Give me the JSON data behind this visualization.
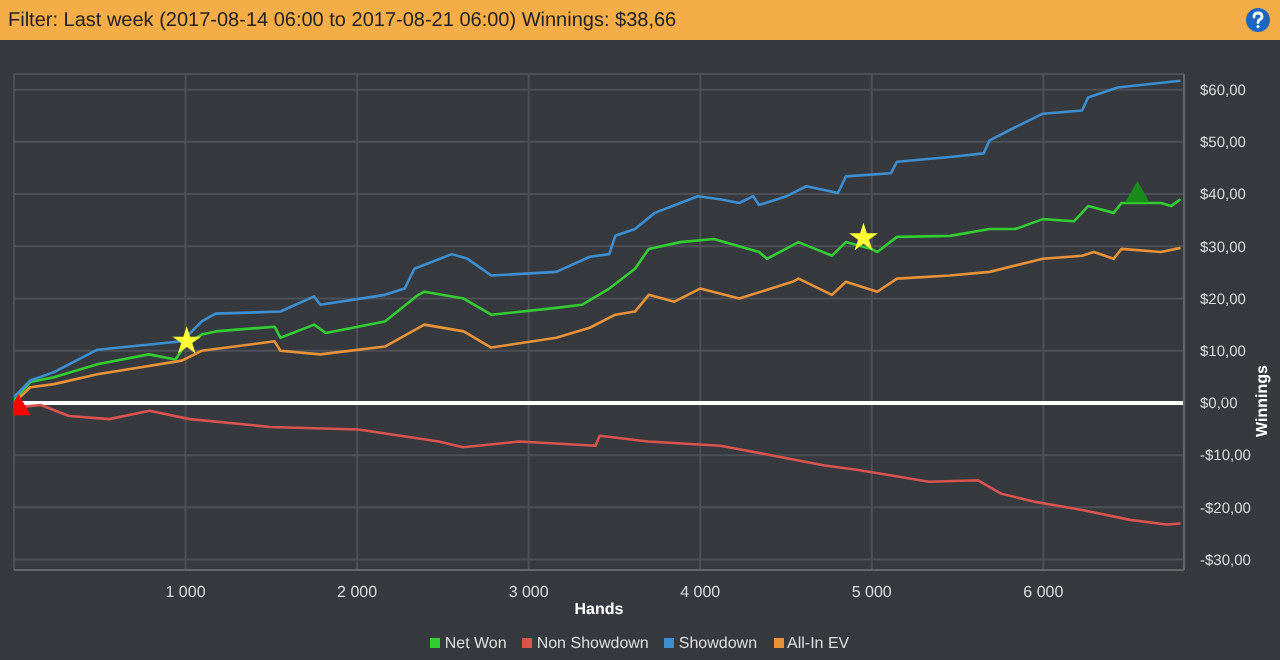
{
  "chart_data": {
    "type": "line",
    "title": "Filter: Last week (2017-08-14 06:00 to 2017-08-21 06:00) Winnings: $38,66",
    "xlabel": "Hands",
    "ylabel": "Winnings",
    "xlim": [
      0,
      6820
    ],
    "ylim": [
      -32,
      63
    ],
    "xticks": [
      {
        "value": 1000,
        "label": "1 000"
      },
      {
        "value": 2000,
        "label": "2 000"
      },
      {
        "value": 3000,
        "label": "3 000"
      },
      {
        "value": 4000,
        "label": "4 000"
      },
      {
        "value": 5000,
        "label": "5 000"
      },
      {
        "value": 6000,
        "label": "6 000"
      }
    ],
    "yticks": [
      {
        "value": -30,
        "label": "-$30,00"
      },
      {
        "value": -20,
        "label": "-$20,00"
      },
      {
        "value": -10,
        "label": "-$10,00"
      },
      {
        "value": 0,
        "label": "$0,00"
      },
      {
        "value": 10,
        "label": "$10,00"
      },
      {
        "value": 20,
        "label": "$20,00"
      },
      {
        "value": 30,
        "label": "$30,00"
      },
      {
        "value": 40,
        "label": "$40,00"
      },
      {
        "value": 50,
        "label": "$50,00"
      },
      {
        "value": 60,
        "label": "$60,00"
      }
    ],
    "grid": true,
    "legend": "bottom",
    "marker": "none",
    "line_style": "solid",
    "ref_lines": [
      {
        "axis": "y",
        "value": 0,
        "label": null,
        "color": "#ffffff"
      }
    ],
    "series": [
      {
        "name": "Net Won",
        "color": "#33cc33",
        "x": [
          0,
          95,
          233,
          486,
          785,
          941,
          1000,
          1094,
          1175,
          1519,
          1553,
          1750,
          1817,
          2162,
          2357,
          2392,
          2621,
          2782,
          3161,
          3310,
          3470,
          3620,
          3700,
          3884,
          4079,
          4343,
          4389,
          4573,
          4768,
          4849,
          4998,
          5032,
          5147,
          5457,
          5687,
          5836,
          5997,
          6180,
          6261,
          6410,
          6456,
          6686,
          6744,
          6800
        ],
        "values": [
          0.5,
          4,
          4.9,
          7.4,
          9.3,
          8.3,
          11.2,
          13.1,
          13.7,
          14.6,
          12.5,
          15,
          13.4,
          15.6,
          20.7,
          21.3,
          20,
          16.9,
          18.2,
          18.8,
          21.9,
          25.7,
          29.5,
          30.8,
          31.4,
          28.9,
          27.6,
          30.8,
          28.2,
          30.8,
          29.5,
          28.9,
          31.8,
          32,
          33.3,
          33.3,
          35.2,
          34.8,
          37.7,
          36.4,
          38.3,
          38.3,
          37.7,
          39
        ]
      },
      {
        "name": "Non Showdown",
        "color": "#d9534f",
        "x": [
          0,
          157,
          321,
          555,
          790,
          1024,
          1493,
          2008,
          2476,
          2617,
          2945,
          3390,
          3414,
          3695,
          4117,
          4444,
          4725,
          4913,
          5334,
          5617,
          5756,
          5944,
          6226,
          6506,
          6718,
          6800
        ],
        "values": [
          -0.9,
          -0.4,
          -2.5,
          -3.1,
          -1.5,
          -3.1,
          -4.6,
          -5.1,
          -7.4,
          -8.5,
          -7.4,
          -8.2,
          -6.3,
          -7.4,
          -8.2,
          -10.2,
          -12,
          -12.8,
          -15.1,
          -14.8,
          -17.4,
          -18.9,
          -20.5,
          -22.4,
          -23.3,
          -23.1
        ]
      },
      {
        "name": "Showdown",
        "color": "#3d8fd1",
        "x": [
          0,
          95,
          233,
          486,
          979,
          1094,
          1175,
          1553,
          1750,
          1785,
          2162,
          2277,
          2334,
          2552,
          2644,
          2782,
          3161,
          3356,
          3470,
          3505,
          3620,
          3735,
          3884,
          3987,
          4114,
          4228,
          4309,
          4343,
          4504,
          4619,
          4803,
          4849,
          5112,
          5147,
          5457,
          5652,
          5687,
          5836,
          5997,
          6226,
          6261,
          6433,
          6800
        ],
        "values": [
          1.1,
          4.3,
          5.9,
          10.2,
          11.8,
          15.6,
          17.1,
          17.5,
          20.4,
          18.8,
          20.7,
          21.9,
          25.7,
          28.5,
          27.6,
          24.4,
          25.1,
          28,
          28.5,
          32,
          33.3,
          36.4,
          38.3,
          39.6,
          39,
          38.3,
          39.6,
          37.9,
          39.6,
          41.5,
          40.2,
          43.4,
          44,
          46.2,
          47.1,
          47.8,
          50.3,
          52.8,
          55.4,
          56,
          58.5,
          60.4,
          61.7
        ]
      },
      {
        "name": "All-In EV",
        "color": "#e8923a",
        "x": [
          0,
          95,
          233,
          486,
          979,
          1094,
          1519,
          1553,
          1785,
          2162,
          2392,
          2621,
          2782,
          3161,
          3356,
          3505,
          3620,
          3700,
          3850,
          3999,
          4228,
          4538,
          4573,
          4768,
          4849,
          5032,
          5147,
          5457,
          5687,
          5997,
          6226,
          6295,
          6410,
          6456,
          6686,
          6800
        ],
        "values": [
          0,
          3,
          3.6,
          5.5,
          8.1,
          10,
          11.8,
          10,
          9.3,
          10.8,
          15,
          13.7,
          10.6,
          12.5,
          14.4,
          16.9,
          17.5,
          20.7,
          19.4,
          21.9,
          20,
          23.2,
          23.8,
          20.7,
          23.2,
          21.3,
          23.8,
          24.4,
          25.1,
          27.6,
          28.2,
          28.9,
          27.6,
          29.5,
          28.9,
          29.7
        ]
      },
      {
        "type": "scatter",
        "marker": "star",
        "color": "#ffff33",
        "x": [
          1007,
          4952
        ],
        "values": [
          11.8,
          31.6
        ]
      },
      {
        "type": "scatter",
        "marker": "triangle",
        "color": "#1a8a1a",
        "x": [
          6548
        ],
        "values": [
          39.8
        ]
      },
      {
        "type": "scatter",
        "marker": "triangle",
        "color": "#ff0000",
        "x": [
          26
        ],
        "values": [
          -1
        ]
      }
    ]
  }
}
